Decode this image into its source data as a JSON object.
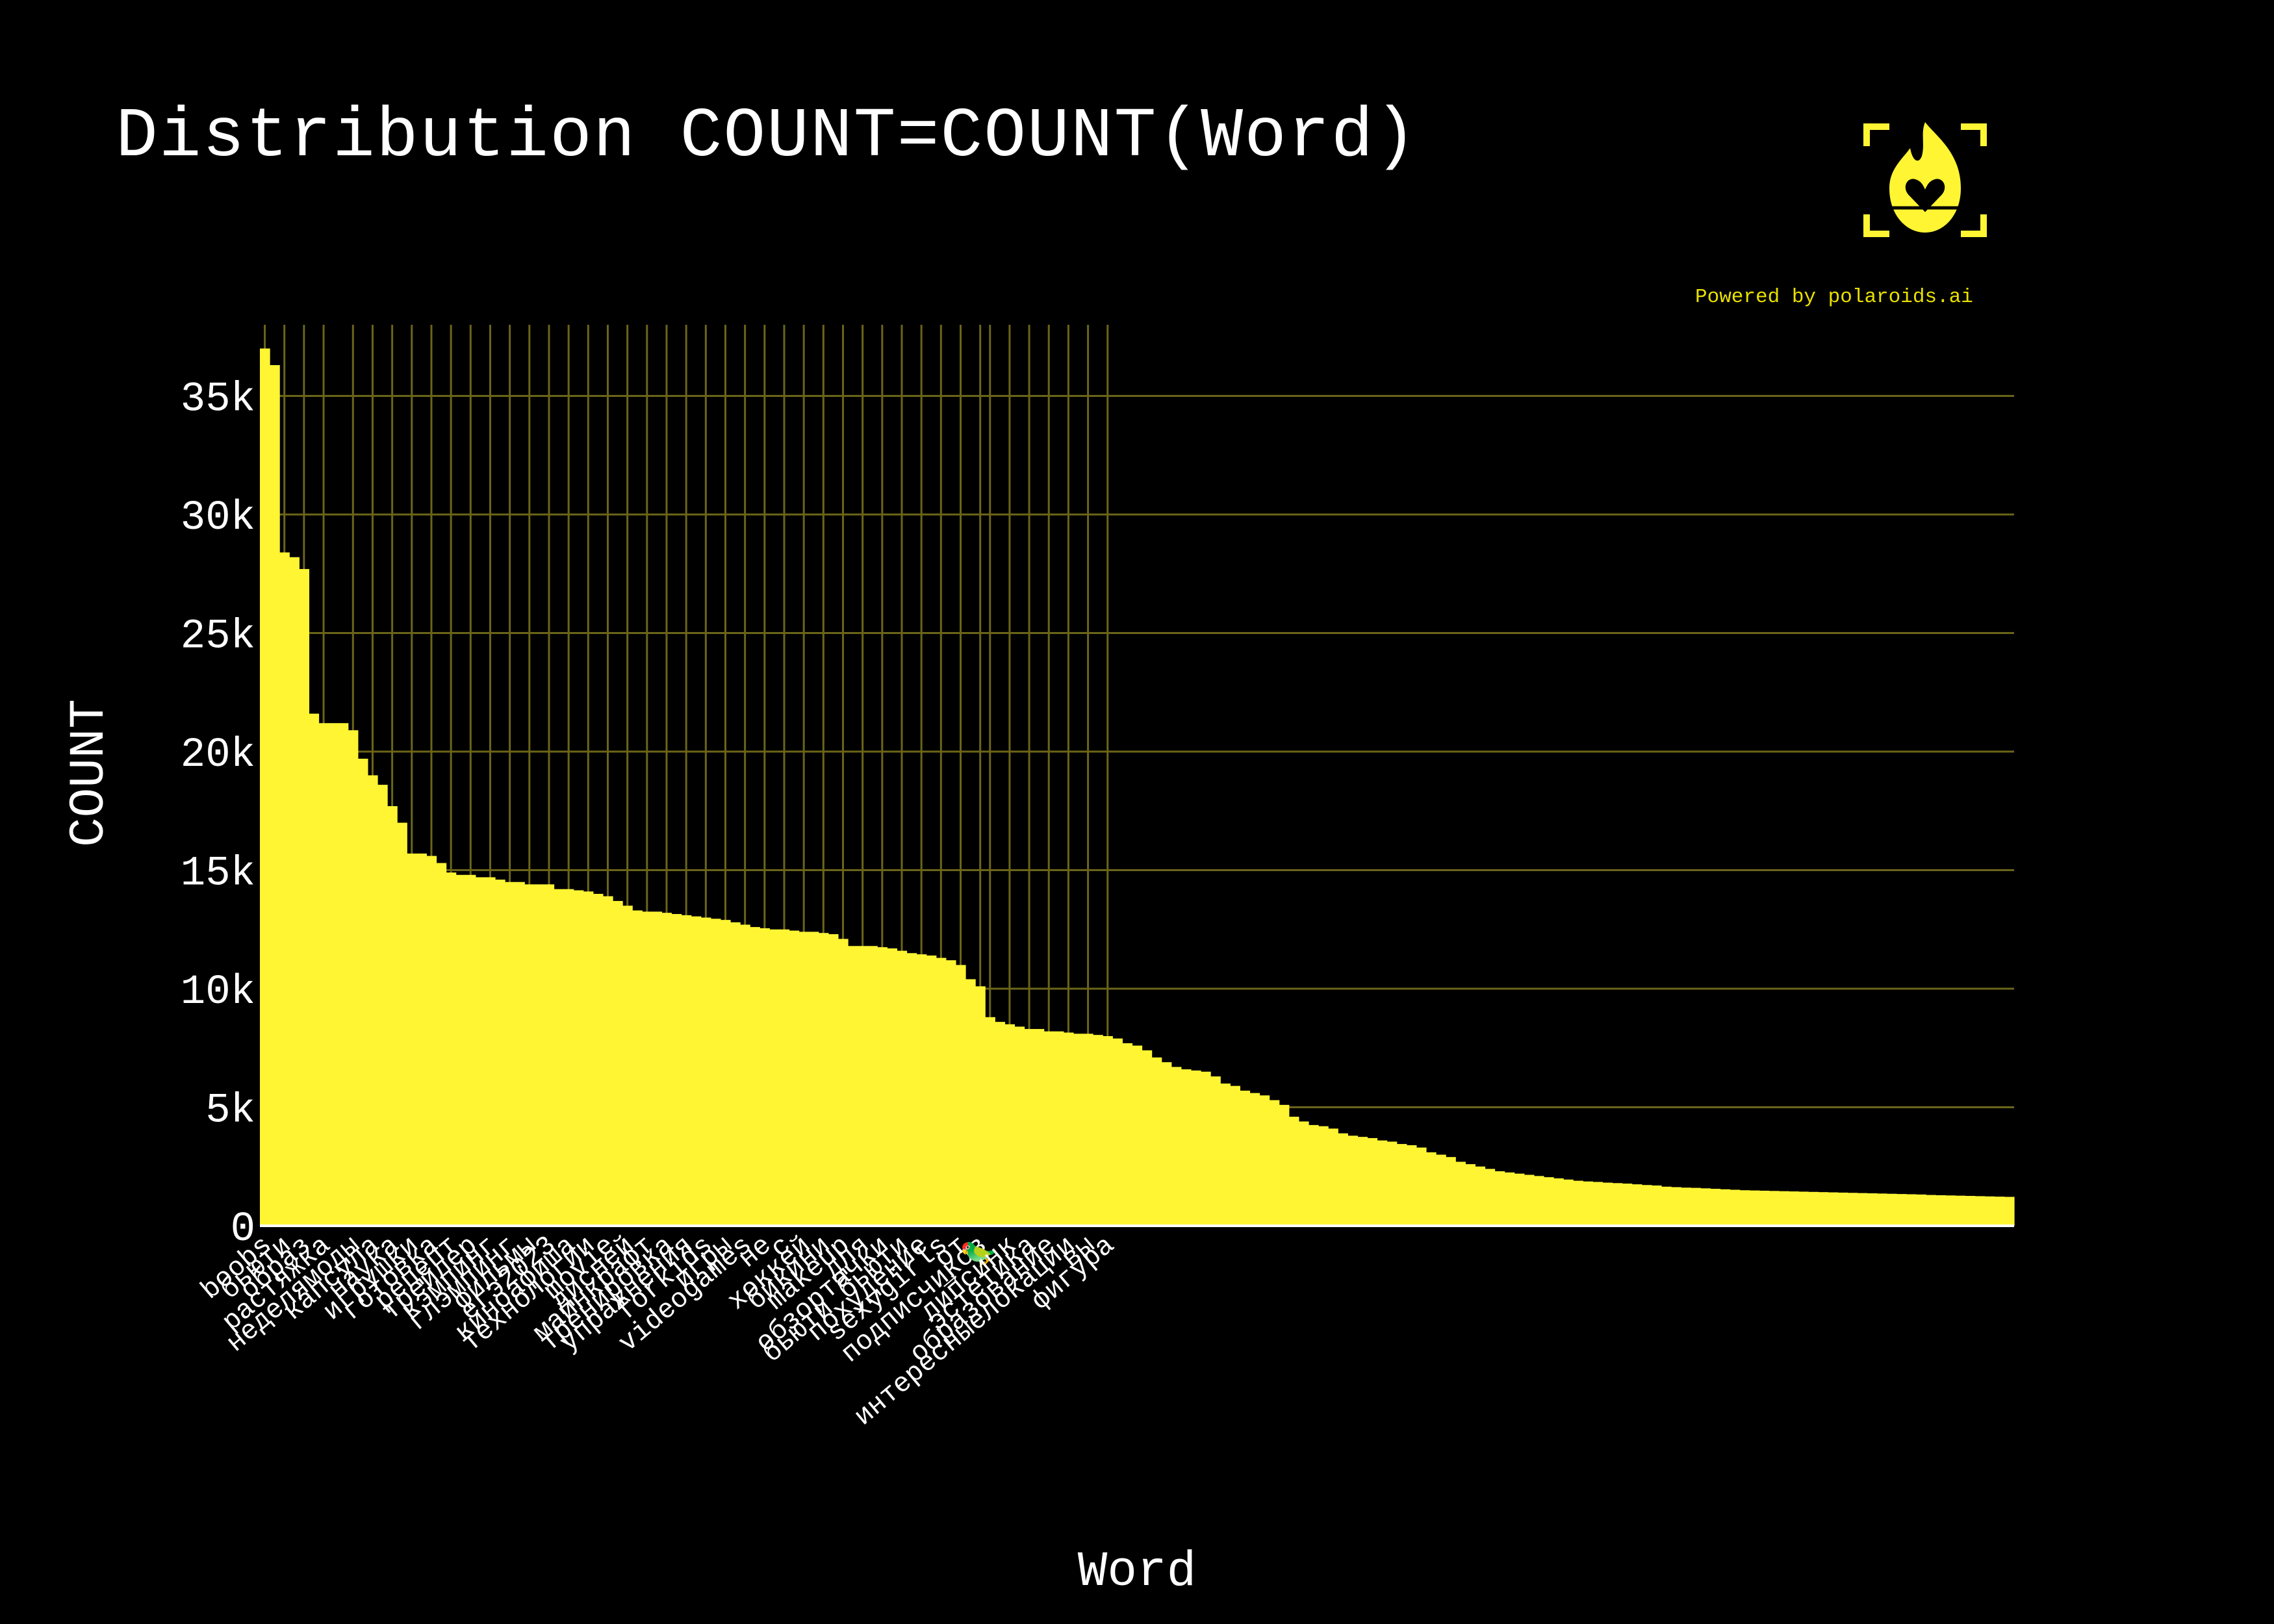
{
  "title": "Distribution COUNT=COUNT(Word)",
  "powered_by": "Powered by polaroids.ai",
  "logo_icon": "flame-heart-camera-icon",
  "colors": {
    "background": "#000000",
    "bar": "#fff533",
    "grid": "#6b6519",
    "text": "#ffffff",
    "brand": "#e8e000"
  },
  "chart_data": {
    "type": "bar",
    "title": "Distribution COUNT=COUNT(Word)",
    "xlabel": "Word",
    "ylabel": "COUNT",
    "ylim": [
      0,
      38000
    ],
    "y_ticks": [
      0,
      5000,
      10000,
      15000,
      20000,
      25000,
      30000,
      35000
    ],
    "y_tick_labels": [
      "0",
      "5k",
      "10k",
      "15k",
      "20k",
      "25k",
      "30k",
      "35k"
    ],
    "grid": true,
    "x_tick_labels": [
      "boobs",
      "бьюти",
      "образ",
      "растяжка",
      "неделямоды",
      "капсула",
      "наука",
      "игрушки",
      "готовка",
      "рецепт",
      "трейлер",
      "кэмпинг",
      "глэмпинг",
      "фильмы",
      "егэ2023",
      "киноафиша",
      "технологии",
      "movie",
      "дисней",
      "майнкрафт",
      "тренировка",
      "упражнения",
      "forkids",
      "игры",
      "videogames",
      "не",
      "с",
      "хоккей",
      "бикини",
      "makeup",
      "для",
      "обзортачки",
      "бьюти бьюти",
      "похудение",
      "sexygirls",
      "от",
      "подписчиков",
      "→ 🦜",
      "липсинк",
      "эстетика",
      "образование",
      "интересныелокации",
      "вы",
      "фигура"
    ],
    "x_tick_positions": [
      0,
      2,
      4,
      6,
      9,
      11,
      13,
      15,
      17,
      19,
      21,
      23,
      25,
      27,
      29,
      31,
      33,
      35,
      37,
      39,
      41,
      43,
      45,
      47,
      49,
      51,
      53,
      55,
      57,
      59,
      61,
      63,
      65,
      67,
      69,
      71,
      73,
      74,
      76,
      78,
      80,
      82,
      84,
      86
    ],
    "values": [
      37000,
      36300,
      28400,
      28200,
      27700,
      21600,
      21200,
      21200,
      21200,
      20900,
      19700,
      19000,
      18600,
      17700,
      17000,
      15700,
      15700,
      15600,
      15300,
      14900,
      14800,
      14800,
      14700,
      14700,
      14600,
      14500,
      14500,
      14400,
      14400,
      14400,
      14200,
      14200,
      14150,
      14100,
      14000,
      13900,
      13700,
      13500,
      13300,
      13250,
      13250,
      13200,
      13150,
      13100,
      13050,
      13000,
      12950,
      12900,
      12800,
      12700,
      12600,
      12550,
      12500,
      12500,
      12450,
      12400,
      12400,
      12350,
      12300,
      12100,
      11800,
      11800,
      11800,
      11750,
      11700,
      11600,
      11500,
      11450,
      11400,
      11300,
      11200,
      11000,
      10400,
      10100,
      8800,
      8600,
      8500,
      8400,
      8300,
      8300,
      8200,
      8200,
      8150,
      8100,
      8100,
      8050,
      8000,
      7900,
      7700,
      7600,
      7400,
      7100,
      6900,
      6700,
      6600,
      6550,
      6500,
      6300,
      6000,
      5900,
      5700,
      5600,
      5500,
      5300,
      5100,
      4600,
      4400,
      4250,
      4200,
      4100,
      3900,
      3800,
      3750,
      3700,
      3600,
      3550,
      3450,
      3400,
      3300,
      3100,
      3000,
      2900,
      2700,
      2600,
      2500,
      2400,
      2300,
      2250,
      2200,
      2150,
      2100,
      2050,
      2000,
      1950,
      1900,
      1870,
      1850,
      1820,
      1800,
      1780,
      1750,
      1720,
      1700,
      1650,
      1630,
      1610,
      1600,
      1580,
      1560,
      1540,
      1520,
      1500,
      1490,
      1480,
      1470,
      1460,
      1450,
      1440,
      1430,
      1420,
      1410,
      1400,
      1390,
      1380,
      1370,
      1360,
      1350,
      1340,
      1330,
      1320,
      1300,
      1290,
      1280,
      1270,
      1260,
      1250,
      1240,
      1230,
      1220
    ]
  }
}
